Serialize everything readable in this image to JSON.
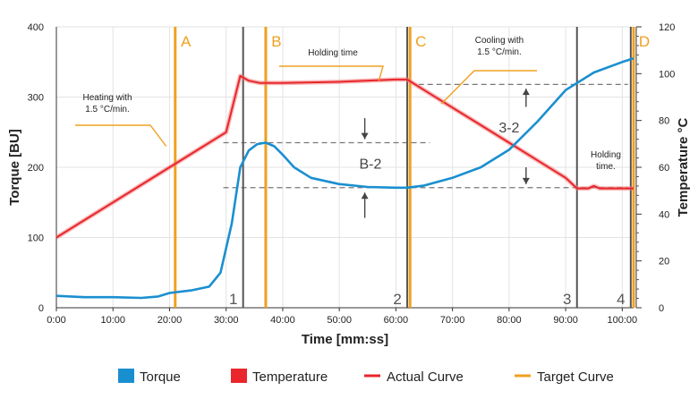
{
  "chart_data": {
    "type": "line",
    "xlabel": "Time [mm:ss]",
    "ylabel": "Torque [BU]",
    "y2label": "Temperature °C",
    "x_ticks": [
      "0:00",
      "10:00",
      "20:00",
      "30:00",
      "40:00",
      "50:00",
      "60:00",
      "70:00",
      "80:00",
      "90:00",
      "100:00"
    ],
    "xlim": [
      0,
      102
    ],
    "ylim": [
      0,
      400
    ],
    "y2lim": [
      0,
      120
    ],
    "y_ticks": [
      "0",
      "100",
      "200",
      "300",
      "400"
    ],
    "y2_ticks": [
      "0",
      "20",
      "40",
      "60",
      "80",
      "100",
      "120"
    ],
    "grid": true,
    "legend_position": "bottom",
    "series": [
      {
        "name": "Torque",
        "axis": "left",
        "color": "#1a8fd0",
        "x": [
          0,
          5,
          10,
          15,
          18,
          20,
          24,
          27,
          29,
          31,
          32.5,
          34,
          35.5,
          37,
          38.5,
          40,
          42,
          45,
          50,
          55,
          60,
          62,
          65,
          70,
          75,
          80,
          85,
          90,
          95,
          100,
          102
        ],
        "values": [
          17,
          15,
          15,
          14,
          16,
          21,
          25,
          30,
          50,
          120,
          200,
          224,
          233,
          235,
          230,
          218,
          200,
          185,
          176,
          172,
          171,
          171,
          174,
          185,
          200,
          225,
          265,
          310,
          335,
          350,
          355
        ]
      },
      {
        "name": "Temperature",
        "axis": "right",
        "color": "#e8262b",
        "x": [
          0,
          5,
          10,
          15,
          20,
          25,
          30,
          32.5,
          34,
          36,
          40,
          50,
          60,
          62,
          65,
          70,
          75,
          80,
          85,
          90,
          92,
          94,
          95,
          96,
          100,
          102
        ],
        "values": [
          30,
          37.5,
          45,
          52.5,
          60,
          67.5,
          75,
          99,
          97,
          96,
          96,
          96.5,
          97.5,
          97.5,
          93,
          85.5,
          78,
          70.5,
          63,
          55.5,
          51,
          51,
          52,
          51,
          51,
          51
        ]
      }
    ],
    "target_curve": {
      "color": "#f0a020",
      "annotations": [
        "Heating with 1.5 °C/min.",
        "Holding time",
        "Cooling with 1.5 °C/min.",
        "Holding time."
      ]
    },
    "phase_lines": {
      "target": [
        {
          "label": "A",
          "x": 21
        },
        {
          "label": "B",
          "x": 37
        },
        {
          "label": "C",
          "x": 62.5
        },
        {
          "label": "D",
          "x": 102
        }
      ],
      "actual": [
        {
          "label": "1",
          "x": 33
        },
        {
          "label": "2",
          "x": 62
        },
        {
          "label": "3",
          "x": 92
        },
        {
          "label": "4",
          "x": 101.5
        }
      ]
    },
    "measurements": [
      "B-2",
      "3-2"
    ],
    "legend": [
      "Torque",
      "Temperature",
      "Actual Curve",
      "Target Curve"
    ]
  }
}
